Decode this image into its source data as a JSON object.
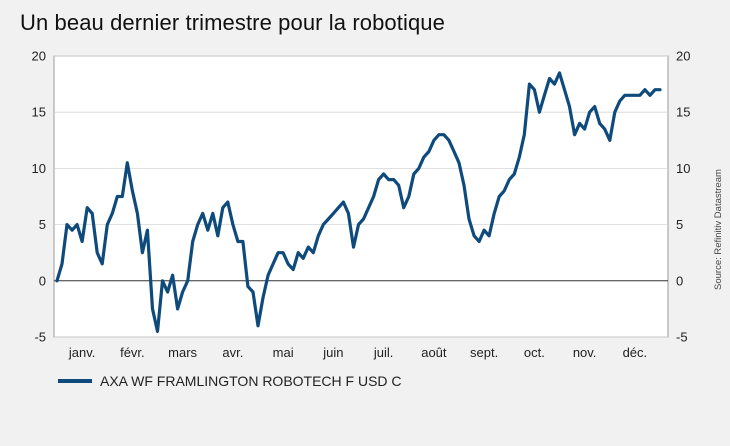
{
  "title": "Un beau dernier trimestre pour la robotique",
  "source": "Source: Refinitiv Datastream",
  "colors": {
    "line": "#0f4a7d",
    "grid": "#d5d5d5",
    "zero_line": "#333333",
    "frame": "#9a9a9a",
    "plot_bg": "#ffffff"
  },
  "chart_data": {
    "type": "line",
    "title": "Un beau dernier trimestre pour la robotique",
    "xlabel": "",
    "ylabel": "",
    "ylim": [
      -5,
      20
    ],
    "y_ticks": [
      -5,
      0,
      5,
      10,
      15,
      20
    ],
    "x_tick_labels": [
      "janv.",
      "févr.",
      "mars",
      "avr.",
      "mai",
      "juin",
      "juil.",
      "août",
      "sept.",
      "oct.",
      "nov.",
      "déc."
    ],
    "grid": true,
    "legend_position": "bottom-left",
    "series": [
      {
        "name": "AXA WF FRAMLINGTON ROBOTECH F USD C",
        "x": [
          0,
          0.1,
          0.2,
          0.3,
          0.4,
          0.5,
          0.6,
          0.7,
          0.8,
          0.9,
          1,
          1.1,
          1.2,
          1.3,
          1.4,
          1.5,
          1.6,
          1.7,
          1.8,
          1.9,
          2,
          2.1,
          2.2,
          2.3,
          2.4,
          2.5,
          2.6,
          2.7,
          2.8,
          2.9,
          3,
          3.1,
          3.2,
          3.3,
          3.4,
          3.5,
          3.6,
          3.7,
          3.8,
          3.9,
          4,
          4.1,
          4.2,
          4.3,
          4.4,
          4.5,
          4.6,
          4.7,
          4.8,
          4.9,
          5,
          5.1,
          5.2,
          5.3,
          5.4,
          5.5,
          5.6,
          5.7,
          5.8,
          5.9,
          6,
          6.1,
          6.2,
          6.3,
          6.4,
          6.5,
          6.6,
          6.7,
          6.8,
          6.9,
          7,
          7.1,
          7.2,
          7.3,
          7.4,
          7.5,
          7.6,
          7.7,
          7.8,
          7.9,
          8,
          8.1,
          8.2,
          8.3,
          8.4,
          8.5,
          8.6,
          8.7,
          8.8,
          8.9,
          9,
          9.1,
          9.2,
          9.3,
          9.4,
          9.5,
          9.6,
          9.7,
          9.8,
          9.9,
          10,
          10.1,
          10.2,
          10.3,
          10.4,
          10.5,
          10.6,
          10.7,
          10.8,
          10.9,
          11,
          11.1,
          11.2,
          11.3,
          11.4,
          11.5,
          11.6,
          11.7,
          11.8,
          11.9,
          12
        ],
        "values": [
          0,
          1.5,
          5,
          4.5,
          5,
          3.5,
          6.5,
          6,
          2.5,
          1.5,
          5,
          6,
          7.5,
          7.5,
          10.5,
          8,
          6,
          2.5,
          4.5,
          -2.5,
          -4.5,
          0,
          -1,
          0.5,
          -2.5,
          -1,
          0,
          3.5,
          5,
          6,
          4.5,
          6,
          4,
          6.5,
          7,
          5,
          3.5,
          3.5,
          -0.5,
          -1,
          -4,
          -1.5,
          0.5,
          1.5,
          2.5,
          2.5,
          1.5,
          1,
          2.5,
          2,
          3,
          2.5,
          4,
          5,
          5.5,
          6,
          6.5,
          7,
          6,
          3,
          5,
          5.5,
          6.5,
          7.5,
          9,
          9.5,
          9,
          9,
          8.5,
          6.5,
          7.5,
          9.5,
          10,
          11,
          11.5,
          12.5,
          13,
          13,
          12.5,
          11.5,
          10.5,
          8.5,
          5.5,
          4,
          3.5,
          4.5,
          4,
          6,
          7.5,
          8,
          9,
          9.5,
          11,
          13,
          17.5,
          17,
          15,
          16.5,
          18,
          17.5,
          18.5,
          17,
          15.5,
          13,
          14,
          13.5,
          15,
          15.5,
          14,
          13.5,
          12.5,
          15,
          16,
          16.5,
          16.5,
          16.5,
          16.5,
          17,
          16.5,
          17,
          17
        ]
      }
    ]
  }
}
